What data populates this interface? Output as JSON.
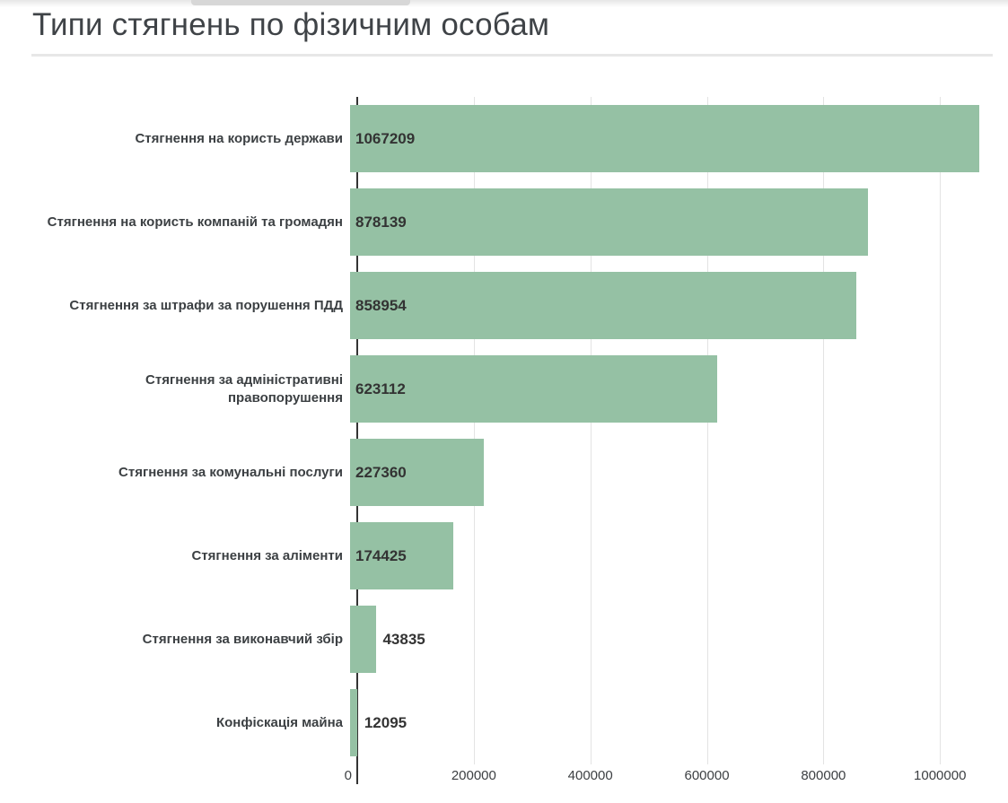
{
  "page": {
    "title": "Типи стягнень по фізичним особам"
  },
  "chart_data": {
    "type": "bar",
    "orientation": "horizontal",
    "title": "Типи стягнень по фізичним особам",
    "categories": [
      "Стягнення на користь держави",
      "Стягнення на користь компаній та громадян",
      "Стягнення за штрафи за порушення ПДД",
      "Стягнення за адміністративні правопорушення",
      "Стягнення за комунальні послуги",
      "Стягнення за аліменти",
      "Стягнення за виконавчий збір",
      "Конфіскація майна"
    ],
    "values": [
      1067209,
      878139,
      858954,
      623112,
      227360,
      174425,
      43835,
      12095
    ],
    "value_labels": [
      "1067209",
      "878139",
      "858954",
      "623112",
      "227360",
      "174425",
      "43835",
      "12095"
    ],
    "xticks": [
      0,
      200000,
      400000,
      600000,
      800000,
      1000000
    ],
    "xtick_labels": [
      "0",
      "200000",
      "400000",
      "600000",
      "800000",
      "1000000"
    ],
    "xlim": [
      0,
      1089000
    ],
    "xlabel": "",
    "ylabel": "",
    "grid": true,
    "legend": false
  },
  "colors": {
    "bar": "#95c1a4",
    "axis_line": "#333333",
    "gridline": "#e3e3e3",
    "label_text": "#3c4043",
    "value_text": "#333333",
    "title_text": "#3f4347",
    "separator": "#e7e7e7",
    "background": "#ffffff"
  }
}
